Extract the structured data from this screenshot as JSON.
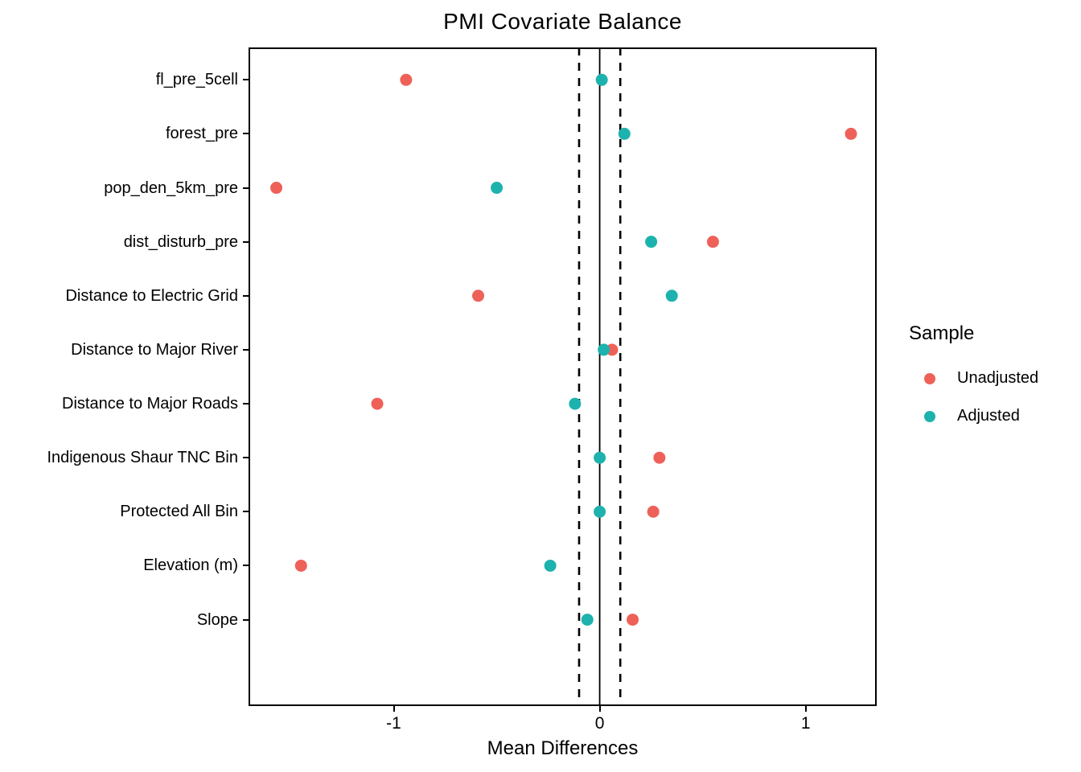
{
  "title": "PMI Covariate Balance",
  "axes": {
    "x_label": "Mean Differences",
    "x_ticks": [
      -1,
      0,
      1
    ],
    "x_tick_labels": [
      "-1",
      "0",
      "1"
    ]
  },
  "legend": {
    "title": "Sample",
    "items": [
      {
        "label": "Unadjusted",
        "color": "#EE6158"
      },
      {
        "label": "Adjusted",
        "color": "#1EB2AE"
      }
    ]
  },
  "reference_lines": {
    "solid": [
      0
    ],
    "dashed": [
      -0.1,
      0.1
    ]
  },
  "chart_data": {
    "type": "scatter",
    "title": "PMI Covariate Balance",
    "xlabel": "Mean Differences",
    "ylabel": "",
    "xlim": [
      -1.705,
      1.345
    ],
    "grid": false,
    "legend_position": "right",
    "legend_title": "Sample",
    "categories": [
      "fl_pre_5cell",
      "forest_pre",
      "pop_den_5km_pre",
      "dist_disturb_pre",
      "Distance to Electric Grid",
      "Distance to Major River",
      "Distance to Major Roads",
      "Indigenous Shaur TNC Bin",
      "Protected All Bin",
      "Elevation (m)",
      "Slope"
    ],
    "series": [
      {
        "name": "Unadjusted",
        "color": "#EE6158",
        "values": [
          -0.94,
          1.22,
          -1.57,
          0.55,
          -0.59,
          0.06,
          -1.08,
          0.29,
          0.26,
          -1.45,
          0.16
        ]
      },
      {
        "name": "Adjusted",
        "color": "#1EB2AE",
        "values": [
          0.01,
          0.12,
          -0.5,
          0.25,
          0.35,
          0.02,
          -0.12,
          0.0,
          0.0,
          -0.24,
          -0.06
        ]
      }
    ]
  }
}
